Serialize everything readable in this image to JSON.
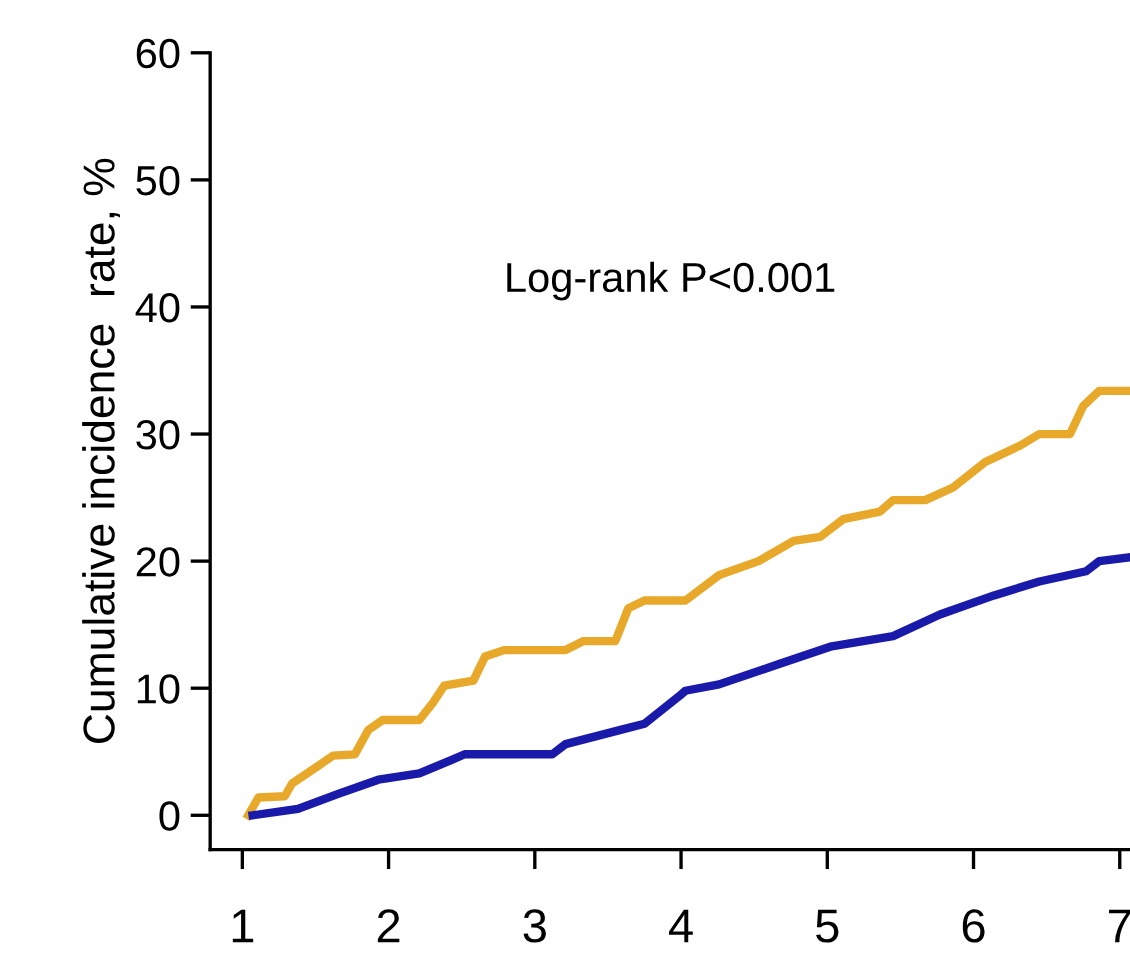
{
  "chart_data": {
    "type": "line",
    "ylabel": "Cumulative incidence  rate, %",
    "annotations": [
      "Log-rank P<0.001"
    ],
    "xlim": [
      0.78,
      7.07
    ],
    "ylim": [
      -2.7,
      60
    ],
    "xticks": [
      1,
      2,
      3,
      4,
      5,
      6,
      7
    ],
    "yticks": [
      0,
      10,
      20,
      30,
      40,
      50,
      60
    ],
    "grid": false,
    "legend": false,
    "marker": "none",
    "line_style": "solid",
    "series": [
      {
        "color": "#e8a92a",
        "x": [
          1.04,
          1.11,
          1.29,
          1.34,
          1.52,
          1.62,
          1.77,
          1.86,
          1.96,
          2.21,
          2.3,
          2.38,
          2.58,
          2.66,
          2.79,
          3.21,
          3.33,
          3.55,
          3.64,
          3.75,
          4.03,
          4.26,
          4.53,
          4.77,
          4.95,
          5.11,
          5.36,
          5.45,
          5.67,
          5.86,
          6.08,
          6.32,
          6.45,
          6.66,
          6.75,
          6.86,
          7.07
        ],
        "values": [
          0,
          1.4,
          1.5,
          2.5,
          3.9,
          4.7,
          4.8,
          6.7,
          7.5,
          7.5,
          8.8,
          10.2,
          10.6,
          12.5,
          13,
          13,
          13.7,
          13.7,
          16.3,
          16.9,
          16.9,
          18.9,
          20,
          21.6,
          21.9,
          23.3,
          23.9,
          24.8,
          24.8,
          25.8,
          27.8,
          29.1,
          30,
          30,
          32.2,
          33.4,
          33.4
        ]
      },
      {
        "color": "#1a1aaa",
        "x": [
          1.07,
          1.38,
          1.66,
          1.93,
          2.21,
          2.44,
          2.52,
          3.12,
          3.21,
          3.58,
          3.75,
          3.99,
          4.03,
          4.26,
          4.67,
          5.03,
          5.45,
          5.77,
          6.14,
          6.45,
          6.77,
          6.86,
          7.07
        ],
        "values": [
          0,
          0.5,
          1.7,
          2.8,
          3.3,
          4.4,
          4.8,
          4.8,
          5.6,
          6.7,
          7.2,
          9.4,
          9.8,
          10.3,
          11.9,
          13.3,
          14.1,
          15.8,
          17.3,
          18.4,
          19.2,
          20,
          20.3
        ]
      }
    ]
  }
}
